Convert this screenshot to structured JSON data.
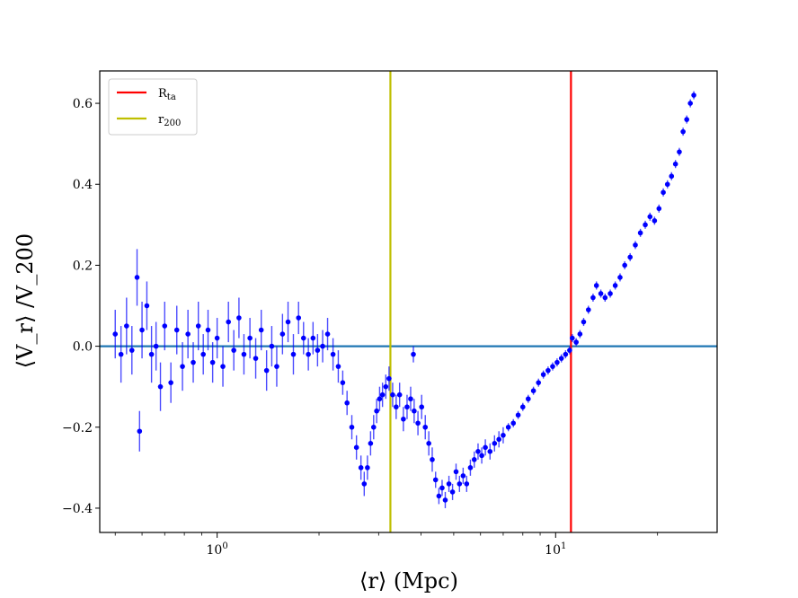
{
  "chart_data": {
    "type": "scatter",
    "xscale": "log",
    "xlim": [
      0.45,
      30
    ],
    "ylim": [
      -0.46,
      0.68
    ],
    "xlabel": "⟨r⟩ (Mpc)",
    "ylabel": "⟨V_r⟩ /V_200",
    "xticks": [
      {
        "value": 1,
        "base": "10",
        "exp": "0"
      },
      {
        "value": 10,
        "base": "10",
        "exp": "1"
      }
    ],
    "yticks": [
      {
        "value": -0.4,
        "label": "−0.4"
      },
      {
        "value": -0.2,
        "label": "−0.2"
      },
      {
        "value": 0.0,
        "label": "0.0"
      },
      {
        "value": 0.2,
        "label": "0.2"
      },
      {
        "value": 0.4,
        "label": "0.4"
      },
      {
        "value": 0.6,
        "label": "0.6"
      }
    ],
    "legend": {
      "placement": "top-left",
      "entries": [
        {
          "label": "R",
          "sub": "ta",
          "color": "#ff0000"
        },
        {
          "label": "r",
          "sub": "200",
          "color": "#bfbf00"
        }
      ]
    },
    "reference_lines": [
      {
        "orientation": "horizontal",
        "y": 0.0,
        "color": "#1f77b4"
      },
      {
        "orientation": "vertical",
        "x": 11.1,
        "color": "#ff0000",
        "legend_index": 0
      },
      {
        "orientation": "vertical",
        "x": 3.25,
        "color": "#bfbf00",
        "legend_index": 1
      }
    ],
    "series": [
      {
        "marker_color": "#0000ff",
        "points": [
          [
            0.5,
            0.03,
            0.06
          ],
          [
            0.52,
            -0.02,
            0.07
          ],
          [
            0.54,
            0.05,
            0.07
          ],
          [
            0.56,
            -0.01,
            0.06
          ],
          [
            0.58,
            0.17,
            0.07
          ],
          [
            0.59,
            -0.21,
            0.05
          ],
          [
            0.6,
            0.04,
            0.07
          ],
          [
            0.62,
            0.1,
            0.06
          ],
          [
            0.64,
            -0.02,
            0.07
          ],
          [
            0.66,
            0.0,
            0.06
          ],
          [
            0.68,
            -0.1,
            0.06
          ],
          [
            0.7,
            0.05,
            0.06
          ],
          [
            0.73,
            -0.09,
            0.05
          ],
          [
            0.76,
            0.04,
            0.06
          ],
          [
            0.79,
            -0.05,
            0.06
          ],
          [
            0.82,
            0.03,
            0.06
          ],
          [
            0.85,
            -0.04,
            0.05
          ],
          [
            0.88,
            0.05,
            0.06
          ],
          [
            0.91,
            -0.02,
            0.05
          ],
          [
            0.94,
            0.04,
            0.05
          ],
          [
            0.97,
            -0.04,
            0.05
          ],
          [
            1.0,
            0.02,
            0.05
          ],
          [
            1.04,
            -0.05,
            0.05
          ],
          [
            1.08,
            0.06,
            0.05
          ],
          [
            1.12,
            -0.01,
            0.05
          ],
          [
            1.16,
            0.07,
            0.05
          ],
          [
            1.2,
            -0.02,
            0.05
          ],
          [
            1.25,
            0.02,
            0.05
          ],
          [
            1.3,
            -0.03,
            0.05
          ],
          [
            1.35,
            0.04,
            0.05
          ],
          [
            1.4,
            -0.06,
            0.05
          ],
          [
            1.45,
            0.0,
            0.05
          ],
          [
            1.5,
            -0.05,
            0.05
          ],
          [
            1.56,
            0.03,
            0.05
          ],
          [
            1.62,
            0.06,
            0.05
          ],
          [
            1.68,
            -0.02,
            0.05
          ],
          [
            1.74,
            0.07,
            0.04
          ],
          [
            1.8,
            0.02,
            0.04
          ],
          [
            1.86,
            -0.02,
            0.04
          ],
          [
            1.92,
            0.02,
            0.04
          ],
          [
            1.98,
            -0.01,
            0.04
          ],
          [
            2.05,
            0.0,
            0.04
          ],
          [
            2.12,
            0.03,
            0.04
          ],
          [
            2.2,
            -0.02,
            0.04
          ],
          [
            2.28,
            -0.05,
            0.04
          ],
          [
            2.35,
            -0.09,
            0.03
          ],
          [
            2.42,
            -0.14,
            0.03
          ],
          [
            2.5,
            -0.2,
            0.03
          ],
          [
            2.58,
            -0.25,
            0.03
          ],
          [
            2.66,
            -0.3,
            0.03
          ],
          [
            2.72,
            -0.34,
            0.03
          ],
          [
            2.78,
            -0.3,
            0.03
          ],
          [
            2.84,
            -0.24,
            0.03
          ],
          [
            2.9,
            -0.2,
            0.03
          ],
          [
            2.96,
            -0.16,
            0.03
          ],
          [
            3.02,
            -0.13,
            0.03
          ],
          [
            3.08,
            -0.12,
            0.03
          ],
          [
            3.15,
            -0.1,
            0.03
          ],
          [
            3.22,
            -0.08,
            0.03
          ],
          [
            3.3,
            -0.12,
            0.03
          ],
          [
            3.38,
            -0.15,
            0.03
          ],
          [
            3.46,
            -0.12,
            0.03
          ],
          [
            3.55,
            -0.18,
            0.03
          ],
          [
            3.64,
            -0.15,
            0.03
          ],
          [
            3.73,
            -0.13,
            0.03
          ],
          [
            3.8,
            -0.02,
            0.02
          ],
          [
            3.82,
            -0.16,
            0.03
          ],
          [
            3.92,
            -0.19,
            0.03
          ],
          [
            4.02,
            -0.15,
            0.03
          ],
          [
            4.12,
            -0.2,
            0.03
          ],
          [
            4.22,
            -0.24,
            0.03
          ],
          [
            4.32,
            -0.28,
            0.03
          ],
          [
            4.42,
            -0.33,
            0.02
          ],
          [
            4.52,
            -0.37,
            0.02
          ],
          [
            4.62,
            -0.35,
            0.02
          ],
          [
            4.72,
            -0.38,
            0.02
          ],
          [
            4.84,
            -0.34,
            0.02
          ],
          [
            4.96,
            -0.36,
            0.02
          ],
          [
            5.08,
            -0.31,
            0.02
          ],
          [
            5.2,
            -0.34,
            0.02
          ],
          [
            5.33,
            -0.32,
            0.02
          ],
          [
            5.46,
            -0.34,
            0.02
          ],
          [
            5.6,
            -0.3,
            0.02
          ],
          [
            5.75,
            -0.28,
            0.02
          ],
          [
            5.9,
            -0.26,
            0.02
          ],
          [
            6.05,
            -0.27,
            0.02
          ],
          [
            6.2,
            -0.25,
            0.02
          ],
          [
            6.4,
            -0.26,
            0.02
          ],
          [
            6.6,
            -0.24,
            0.02
          ],
          [
            6.8,
            -0.23,
            0.02
          ],
          [
            7.0,
            -0.22,
            0.02
          ],
          [
            7.25,
            -0.2,
            0.01
          ],
          [
            7.5,
            -0.19,
            0.01
          ],
          [
            7.75,
            -0.17,
            0.01
          ],
          [
            8.0,
            -0.15,
            0.01
          ],
          [
            8.3,
            -0.13,
            0.01
          ],
          [
            8.6,
            -0.11,
            0.01
          ],
          [
            8.9,
            -0.09,
            0.01
          ],
          [
            9.2,
            -0.07,
            0.01
          ],
          [
            9.5,
            -0.06,
            0.01
          ],
          [
            9.8,
            -0.05,
            0.01
          ],
          [
            10.1,
            -0.04,
            0.01
          ],
          [
            10.4,
            -0.03,
            0.01
          ],
          [
            10.7,
            -0.02,
            0.01
          ],
          [
            11.0,
            -0.01,
            0.01
          ],
          [
            11.2,
            0.02,
            0.01
          ],
          [
            11.5,
            0.01,
            0.01
          ],
          [
            11.8,
            0.03,
            0.01
          ],
          [
            12.1,
            0.06,
            0.01
          ],
          [
            12.5,
            0.09,
            0.01
          ],
          [
            12.9,
            0.12,
            0.01
          ],
          [
            13.2,
            0.15,
            0.01
          ],
          [
            13.6,
            0.13,
            0.01
          ],
          [
            14.0,
            0.12,
            0.01
          ],
          [
            14.5,
            0.13,
            0.01
          ],
          [
            15.0,
            0.15,
            0.01
          ],
          [
            15.5,
            0.17,
            0.01
          ],
          [
            16.0,
            0.2,
            0.01
          ],
          [
            16.6,
            0.22,
            0.01
          ],
          [
            17.2,
            0.25,
            0.01
          ],
          [
            17.8,
            0.28,
            0.01
          ],
          [
            18.4,
            0.3,
            0.01
          ],
          [
            19.0,
            0.32,
            0.01
          ],
          [
            19.6,
            0.31,
            0.01
          ],
          [
            20.2,
            0.34,
            0.01
          ],
          [
            20.8,
            0.38,
            0.01
          ],
          [
            21.4,
            0.4,
            0.01
          ],
          [
            22.0,
            0.42,
            0.01
          ],
          [
            22.6,
            0.45,
            0.01
          ],
          [
            23.2,
            0.48,
            0.01
          ],
          [
            23.8,
            0.53,
            0.01
          ],
          [
            24.4,
            0.56,
            0.01
          ],
          [
            25.0,
            0.6,
            0.01
          ],
          [
            25.6,
            0.62,
            0.01
          ]
        ]
      }
    ]
  }
}
